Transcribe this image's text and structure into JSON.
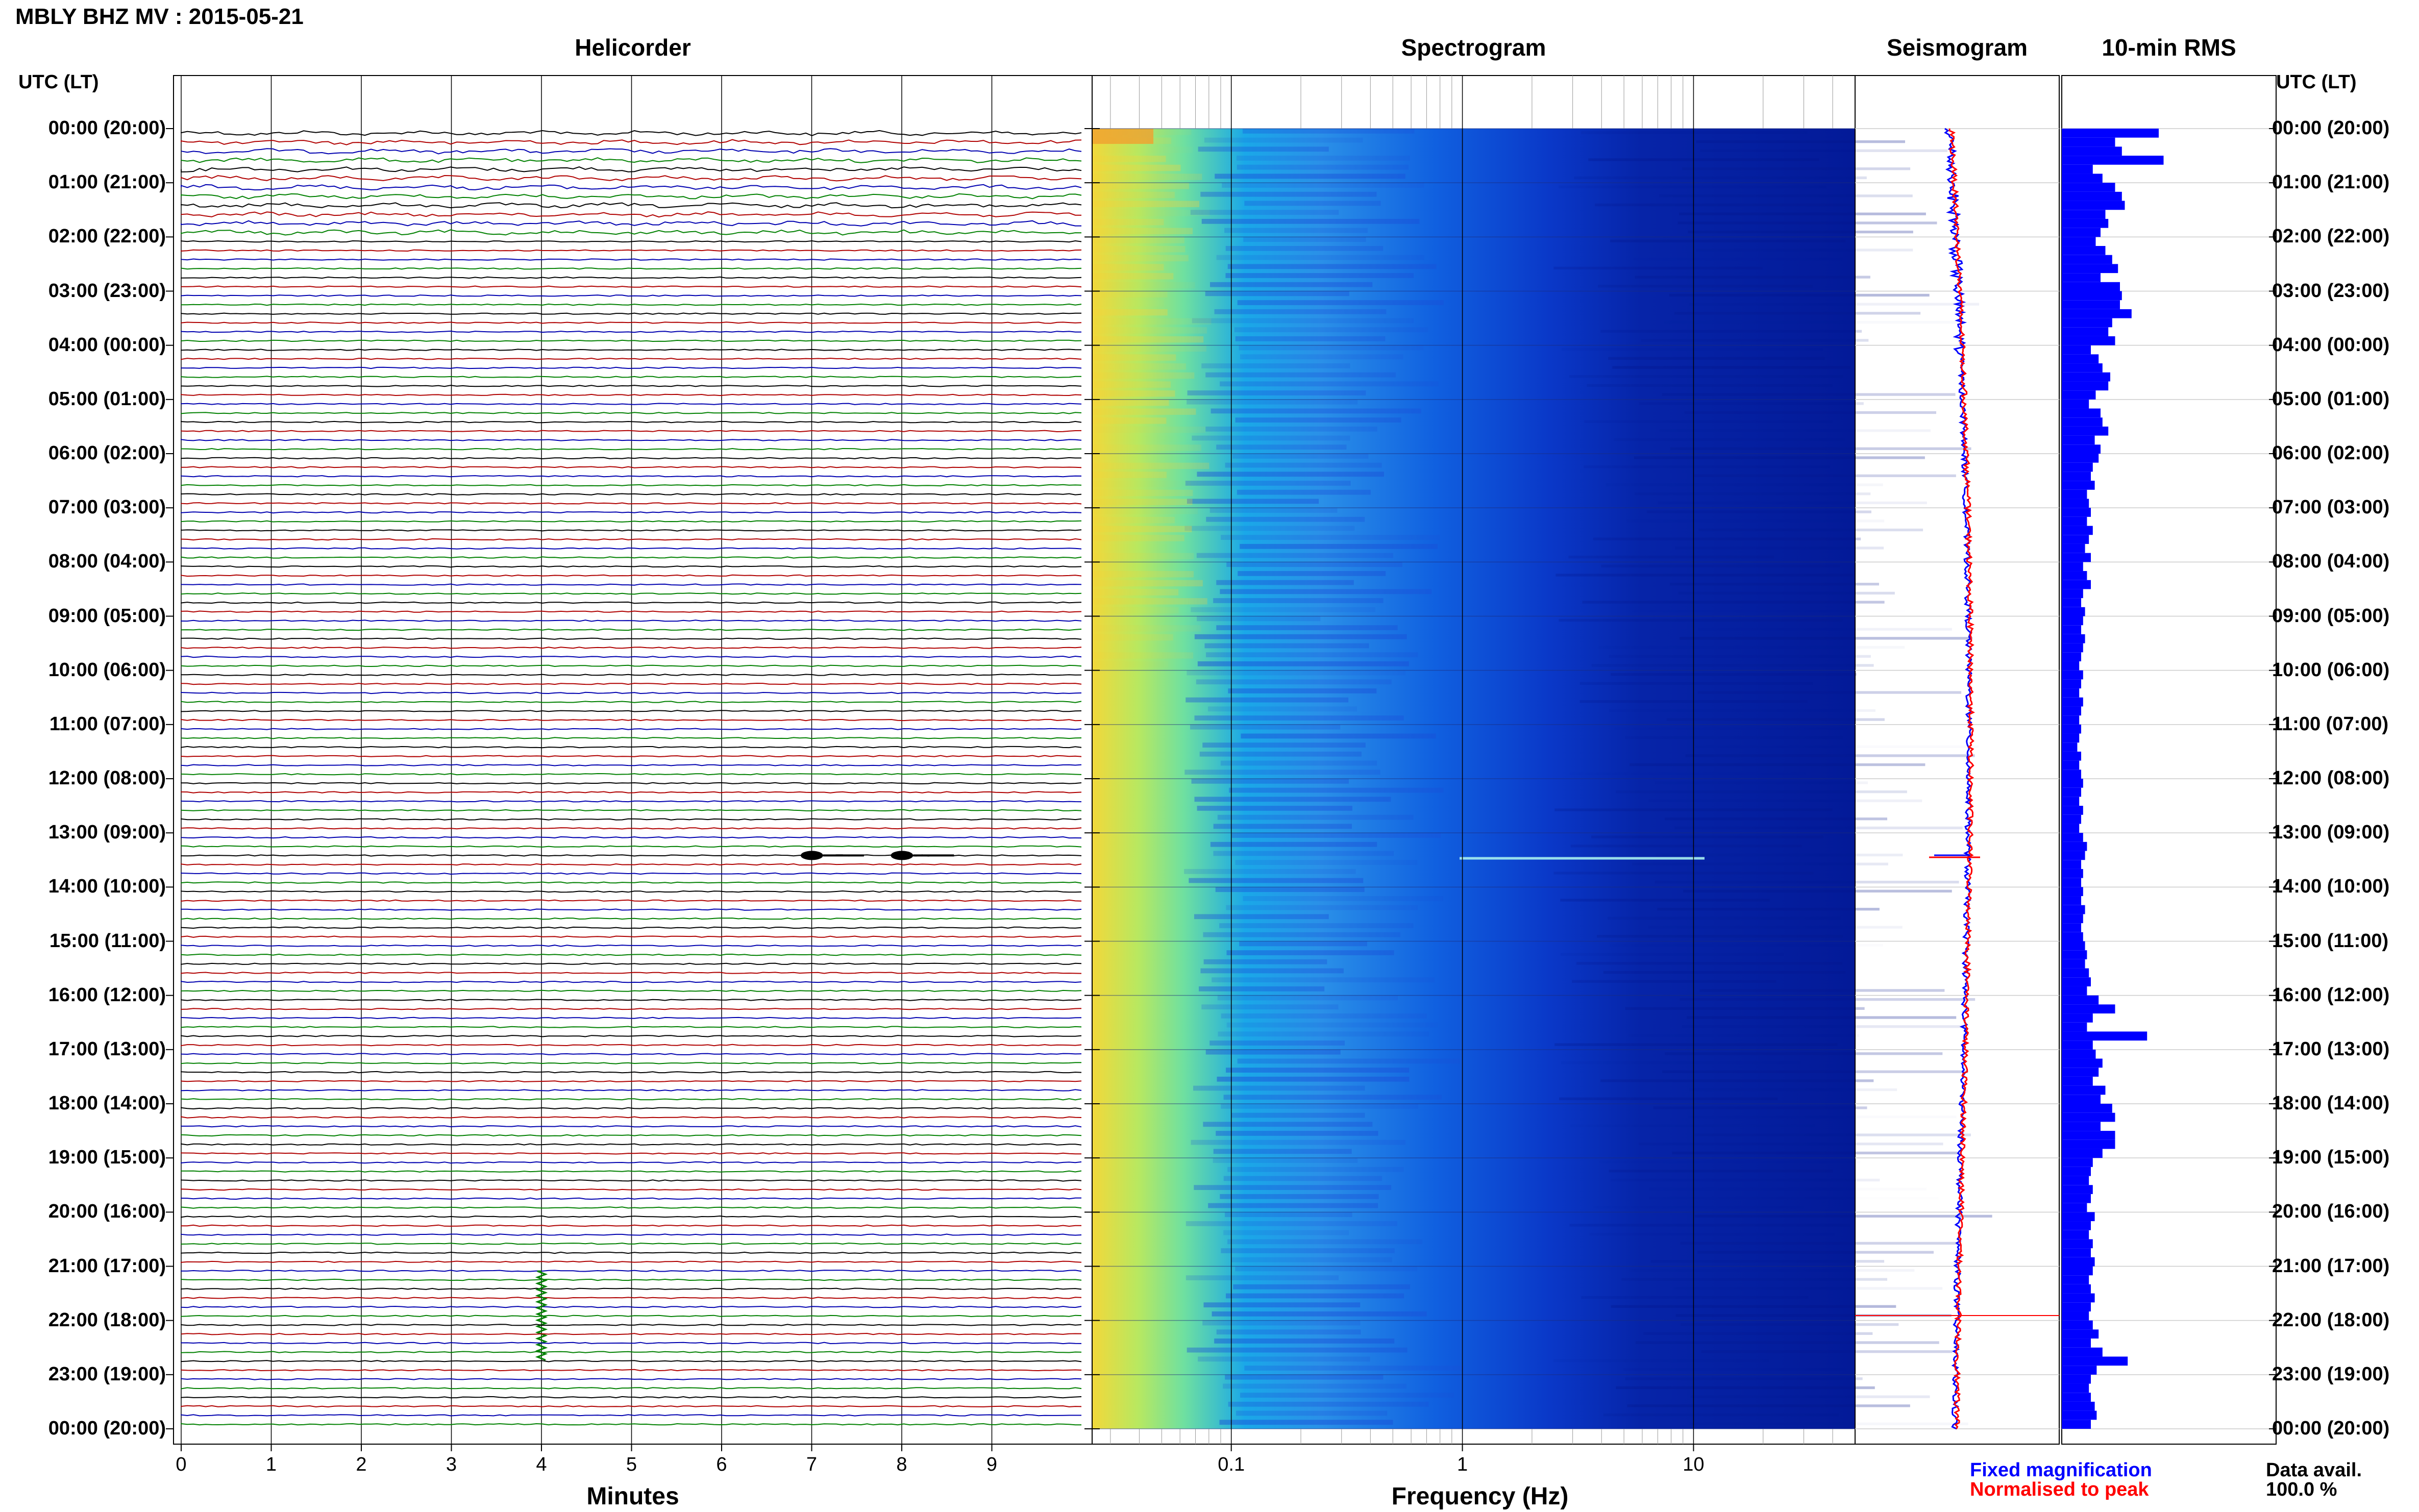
{
  "header": {
    "title": "MBLY BHZ MV : 2015-05-21"
  },
  "panels": {
    "helicorder": "Helicorder",
    "spectrogram": "Spectrogram",
    "seismogram": "Seismogram",
    "rms": "10-min RMS"
  },
  "axis": {
    "time_header_left": "UTC (LT)",
    "time_header_right": "UTC (LT)",
    "time_labels": [
      "00:00 (20:00)",
      "01:00 (21:00)",
      "02:00 (22:00)",
      "03:00 (23:00)",
      "04:00 (00:00)",
      "05:00 (01:00)",
      "06:00 (02:00)",
      "07:00 (03:00)",
      "08:00 (04:00)",
      "09:00 (05:00)",
      "10:00 (06:00)",
      "11:00 (07:00)",
      "12:00 (08:00)",
      "13:00 (09:00)",
      "14:00 (10:00)",
      "15:00 (11:00)",
      "16:00 (12:00)",
      "17:00 (13:00)",
      "18:00 (14:00)",
      "19:00 (15:00)",
      "20:00 (16:00)",
      "21:00 (17:00)",
      "22:00 (18:00)",
      "23:00 (19:00)",
      "00:00 (20:00)"
    ],
    "minutes_ticks": [
      "0",
      "1",
      "2",
      "3",
      "4",
      "5",
      "6",
      "7",
      "8",
      "9"
    ],
    "minutes_label": "Minutes",
    "freq_ticks": [
      "0.1",
      "1",
      "10"
    ],
    "freq_label": "Frequency (Hz)"
  },
  "legend": {
    "fixed": "Fixed magnification",
    "normalised": "Normalised to peak",
    "data_avail_label": "Data avail.",
    "data_avail_value": "100.0 %"
  },
  "colors": {
    "trace_cycle": [
      "#000000",
      "#b00000",
      "#0000b0",
      "#008000"
    ],
    "fixed": "#0000ff",
    "normalised": "#ff0000",
    "rms_bar": "#0000ff"
  },
  "chart_data": [
    {
      "type": "line",
      "title": "Helicorder",
      "xlabel": "Minutes",
      "xlim": [
        0,
        10
      ],
      "rows_per_hour": 6,
      "hours": 24,
      "events": [
        {
          "hour": 13,
          "row": 2,
          "minute": 6.9,
          "color_index": 0,
          "amplitude": "medium"
        },
        {
          "hour": 13,
          "row": 2,
          "minute": 7.9,
          "color_index": 0,
          "amplitude": "medium"
        },
        {
          "hour": 21,
          "row": 4,
          "minute": 4.0,
          "color_index": 3,
          "amplitude": "large"
        }
      ]
    },
    {
      "type": "heatmap",
      "title": "Spectrogram",
      "xlabel": "Frequency (Hz)",
      "xscale": "log",
      "xlim": [
        0.025,
        50
      ],
      "colormap": "jet",
      "description_rows": 144
    },
    {
      "type": "line",
      "title": "Seismogram",
      "series": [
        {
          "name": "Fixed magnification",
          "color": "#0000ff"
        },
        {
          "name": "Normalised to peak",
          "color": "#ff0000"
        }
      ]
    },
    {
      "type": "bar",
      "title": "10-min RMS",
      "orientation": "horizontal",
      "values": [
        1.0,
        0.55,
        0.62,
        1.05,
        0.32,
        0.42,
        0.55,
        0.62,
        0.65,
        0.45,
        0.48,
        0.4,
        0.35,
        0.45,
        0.52,
        0.58,
        0.4,
        0.6,
        0.62,
        0.6,
        0.72,
        0.52,
        0.48,
        0.55,
        0.3,
        0.38,
        0.42,
        0.5,
        0.48,
        0.35,
        0.28,
        0.4,
        0.42,
        0.48,
        0.34,
        0.4,
        0.38,
        0.32,
        0.3,
        0.34,
        0.26,
        0.28,
        0.3,
        0.26,
        0.32,
        0.28,
        0.24,
        0.3,
        0.22,
        0.26,
        0.3,
        0.22,
        0.2,
        0.24,
        0.22,
        0.2,
        0.24,
        0.22,
        0.2,
        0.18,
        0.22,
        0.2,
        0.18,
        0.22,
        0.2,
        0.18,
        0.2,
        0.18,
        0.16,
        0.2,
        0.18,
        0.2,
        0.22,
        0.2,
        0.18,
        0.22,
        0.2,
        0.18,
        0.22,
        0.26,
        0.24,
        0.2,
        0.22,
        0.2,
        0.22,
        0.2,
        0.24,
        0.22,
        0.2,
        0.22,
        0.24,
        0.26,
        0.24,
        0.28,
        0.3,
        0.26,
        0.38,
        0.55,
        0.32,
        0.26,
        0.88,
        0.32,
        0.35,
        0.42,
        0.38,
        0.32,
        0.45,
        0.4,
        0.52,
        0.55,
        0.4,
        0.55,
        0.55,
        0.42,
        0.32,
        0.3,
        0.28,
        0.32,
        0.3,
        0.26,
        0.34,
        0.3,
        0.28,
        0.32,
        0.3,
        0.34,
        0.32,
        0.28,
        0.3,
        0.34,
        0.3,
        0.28,
        0.32,
        0.38,
        0.3,
        0.42,
        0.68,
        0.36,
        0.3,
        0.28,
        0.3,
        0.34,
        0.36,
        0.3
      ]
    }
  ]
}
